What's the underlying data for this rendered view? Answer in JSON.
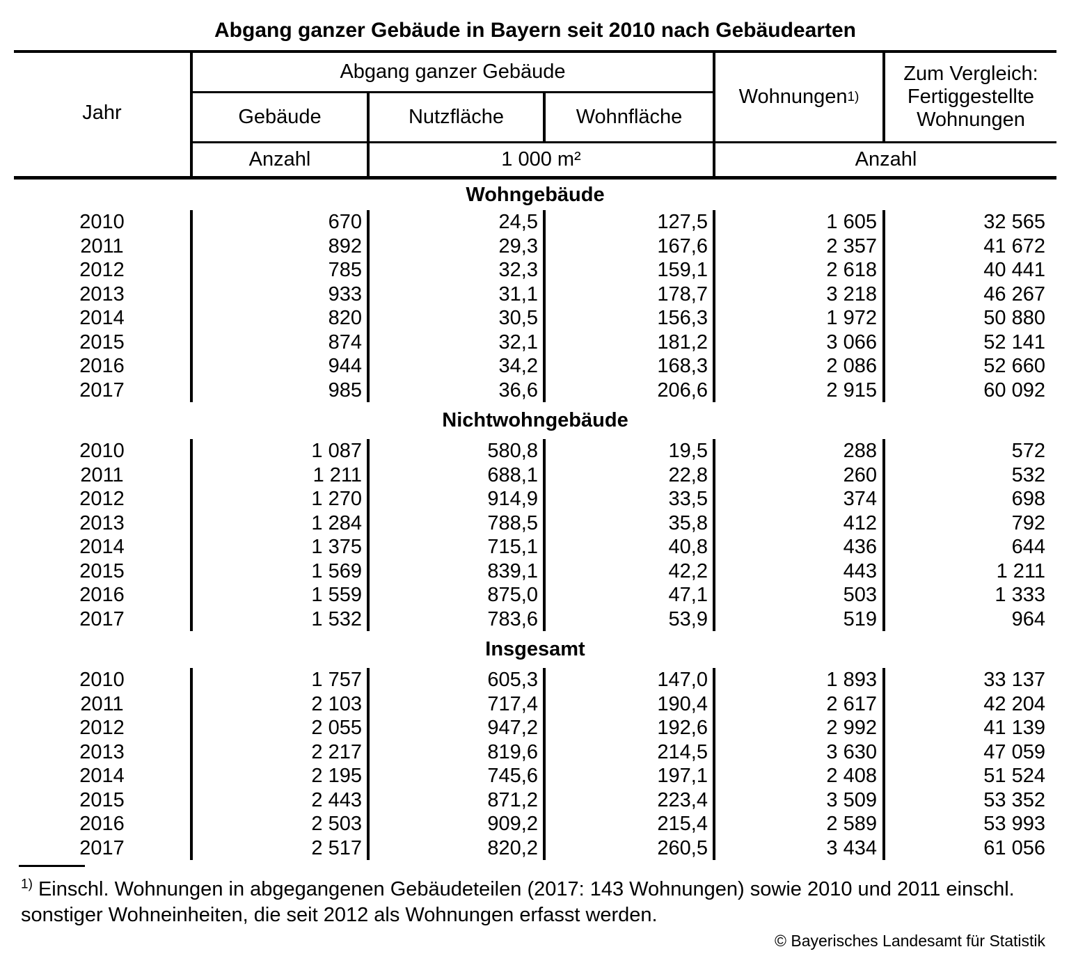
{
  "title": "Abgang ganzer Gebäude in Bayern seit 2010 nach Gebäudearten",
  "header": {
    "jahr": "Jahr",
    "group": "Abgang ganzer Gebäude",
    "col_gebaeude": "Gebäude",
    "col_nutzflaeche": "Nutzfläche",
    "col_wohnflaeche": "Wohnfläche",
    "col_wohnungen": "Wohnungen",
    "wohnungen_footnote_marker": "1)",
    "vergleich_lines": [
      "Zum Vergleich:",
      "Fertiggestellte",
      "Wohnungen"
    ],
    "unit_anzahl_left": "Anzahl",
    "unit_qm": "1 000 m²",
    "unit_anzahl_right": "Anzahl"
  },
  "sections": [
    {
      "label": "Wohngebäude",
      "rows": [
        [
          "2010",
          "670",
          "24,5",
          "127,5",
          "1 605",
          "32 565"
        ],
        [
          "2011",
          "892",
          "29,3",
          "167,6",
          "2 357",
          "41 672"
        ],
        [
          "2012",
          "785",
          "32,3",
          "159,1",
          "2 618",
          "40 441"
        ],
        [
          "2013",
          "933",
          "31,1",
          "178,7",
          "3 218",
          "46 267"
        ],
        [
          "2014",
          "820",
          "30,5",
          "156,3",
          "1 972",
          "50 880"
        ],
        [
          "2015",
          "874",
          "32,1",
          "181,2",
          "3 066",
          "52 141"
        ],
        [
          "2016",
          "944",
          "34,2",
          "168,3",
          "2 086",
          "52 660"
        ],
        [
          "2017",
          "985",
          "36,6",
          "206,6",
          "2 915",
          "60 092"
        ]
      ]
    },
    {
      "label": "Nichtwohngebäude",
      "rows": [
        [
          "2010",
          "1 087",
          "580,8",
          "19,5",
          "288",
          "572"
        ],
        [
          "2011",
          "1 211",
          "688,1",
          "22,8",
          "260",
          "532"
        ],
        [
          "2012",
          "1 270",
          "914,9",
          "33,5",
          "374",
          "698"
        ],
        [
          "2013",
          "1 284",
          "788,5",
          "35,8",
          "412",
          "792"
        ],
        [
          "2014",
          "1 375",
          "715,1",
          "40,8",
          "436",
          "644"
        ],
        [
          "2015",
          "1 569",
          "839,1",
          "42,2",
          "443",
          "1 211"
        ],
        [
          "2016",
          "1 559",
          "875,0",
          "47,1",
          "503",
          "1 333"
        ],
        [
          "2017",
          "1 532",
          "783,6",
          "53,9",
          "519",
          "964"
        ]
      ]
    },
    {
      "label": "Insgesamt",
      "rows": [
        [
          "2010",
          "1 757",
          "605,3",
          "147,0",
          "1 893",
          "33 137"
        ],
        [
          "2011",
          "2 103",
          "717,4",
          "190,4",
          "2 617",
          "42 204"
        ],
        [
          "2012",
          "2 055",
          "947,2",
          "192,6",
          "2 992",
          "41 139"
        ],
        [
          "2013",
          "2 217",
          "819,6",
          "214,5",
          "3 630",
          "47 059"
        ],
        [
          "2014",
          "2 195",
          "745,6",
          "197,1",
          "2 408",
          "51 524"
        ],
        [
          "2015",
          "2 443",
          "871,2",
          "223,4",
          "3 509",
          "53 352"
        ],
        [
          "2016",
          "2 503",
          "909,2",
          "215,4",
          "2 589",
          "53 993"
        ],
        [
          "2017",
          "2 517",
          "820,2",
          "260,5",
          "3 434",
          "61 056"
        ]
      ]
    }
  ],
  "footnote": {
    "marker": "1)",
    "line1": "Einschl. Wohnungen in abgegangenen Gebäudeteilen (2017: 143 Wohnungen) sowie 2010 und 2011 einschl.",
    "line2": "sonstiger Wohneinheiten, die seit 2012 als Wohnungen erfasst werden."
  },
  "copyright": "© Bayerisches Landesamt für Statistik"
}
